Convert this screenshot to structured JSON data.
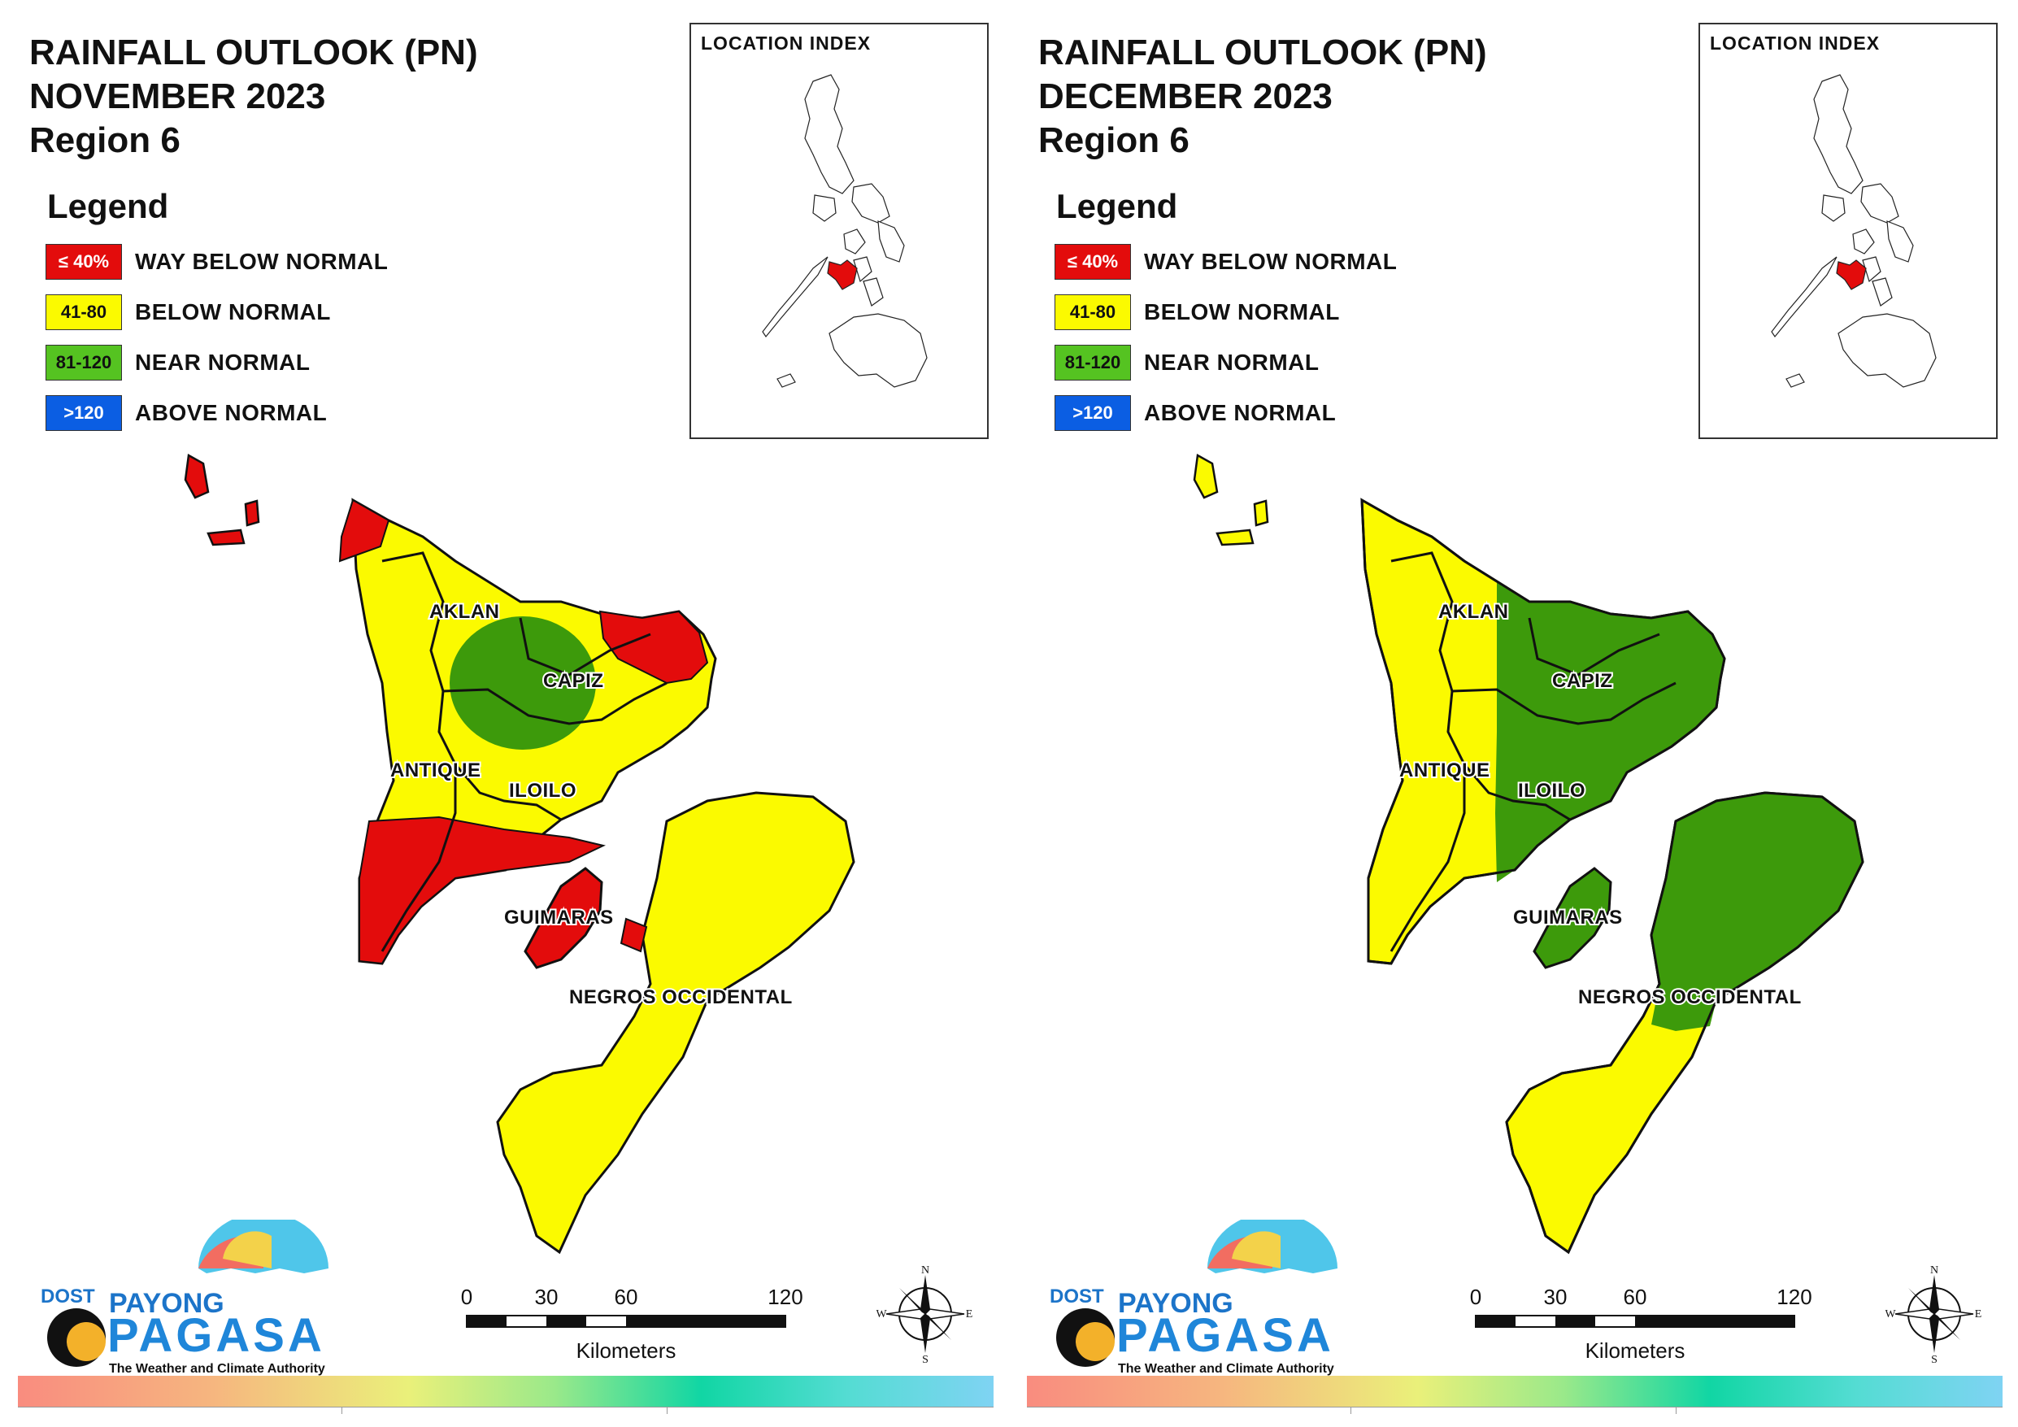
{
  "colors": {
    "way_below": "#e30c0c",
    "below": "#fbfa00",
    "near": "#3d9a0b",
    "above": "#0b5ee3",
    "outline": "#111111"
  },
  "legend": {
    "title": "Legend",
    "items": [
      {
        "range": "≤ 40%",
        "label": "WAY BELOW NORMAL",
        "color": "#e30c0c",
        "text_color": "#ffffff"
      },
      {
        "range": "41-80",
        "label": "BELOW NORMAL",
        "color": "#fbfa00",
        "text_color": "#111111"
      },
      {
        "range": "81-120",
        "label": "NEAR NORMAL",
        "color": "#55c321",
        "text_color": "#111111"
      },
      {
        "range": ">120",
        "label": "ABOVE NORMAL",
        "color": "#0b5ee3",
        "text_color": "#ffffff"
      }
    ]
  },
  "location_index_title": "LOCATION INDEX",
  "provinces": {
    "aklan": "AKLAN",
    "capiz": "CAPIZ",
    "antique": "ANTIQUE",
    "iloilo": "ILOILO",
    "guimaras": "GUIMARAS",
    "negros": "NEGROS OCCIDENTAL"
  },
  "scale": {
    "ticks": [
      "0",
      "30",
      "60",
      "120"
    ],
    "unit": "Kilometers"
  },
  "compass": {
    "n": "N",
    "s": "S",
    "e": "E",
    "w": "W"
  },
  "logo": {
    "dost": "DOST",
    "payong": "PAYONG",
    "pagasa": "PAGASA",
    "tagline": "The Weather and Climate Authority"
  },
  "panels": [
    {
      "title_line1": "RAINFALL OUTLOOK (PN)",
      "title_line2": "NOVEMBER 2023",
      "title_line3": "Region 6",
      "province_outlook": {
        "aklan": "mostly below normal, way below normal in north and east",
        "capiz": "below and near normal, way below normal in northeast",
        "antique": "below and way below normal",
        "iloilo": "below normal, way below normal in south",
        "guimaras": "way below normal",
        "negros_occidental": "below normal"
      }
    },
    {
      "title_line1": "RAINFALL OUTLOOK (PN)",
      "title_line2": "DECEMBER 2023",
      "title_line3": "Region 6",
      "province_outlook": {
        "aklan": "below normal, near normal in east",
        "capiz": "near normal",
        "antique": "below normal",
        "iloilo": "near normal, below normal in west",
        "guimaras": "near normal",
        "negros_occidental": "near normal, below normal in south"
      }
    }
  ]
}
